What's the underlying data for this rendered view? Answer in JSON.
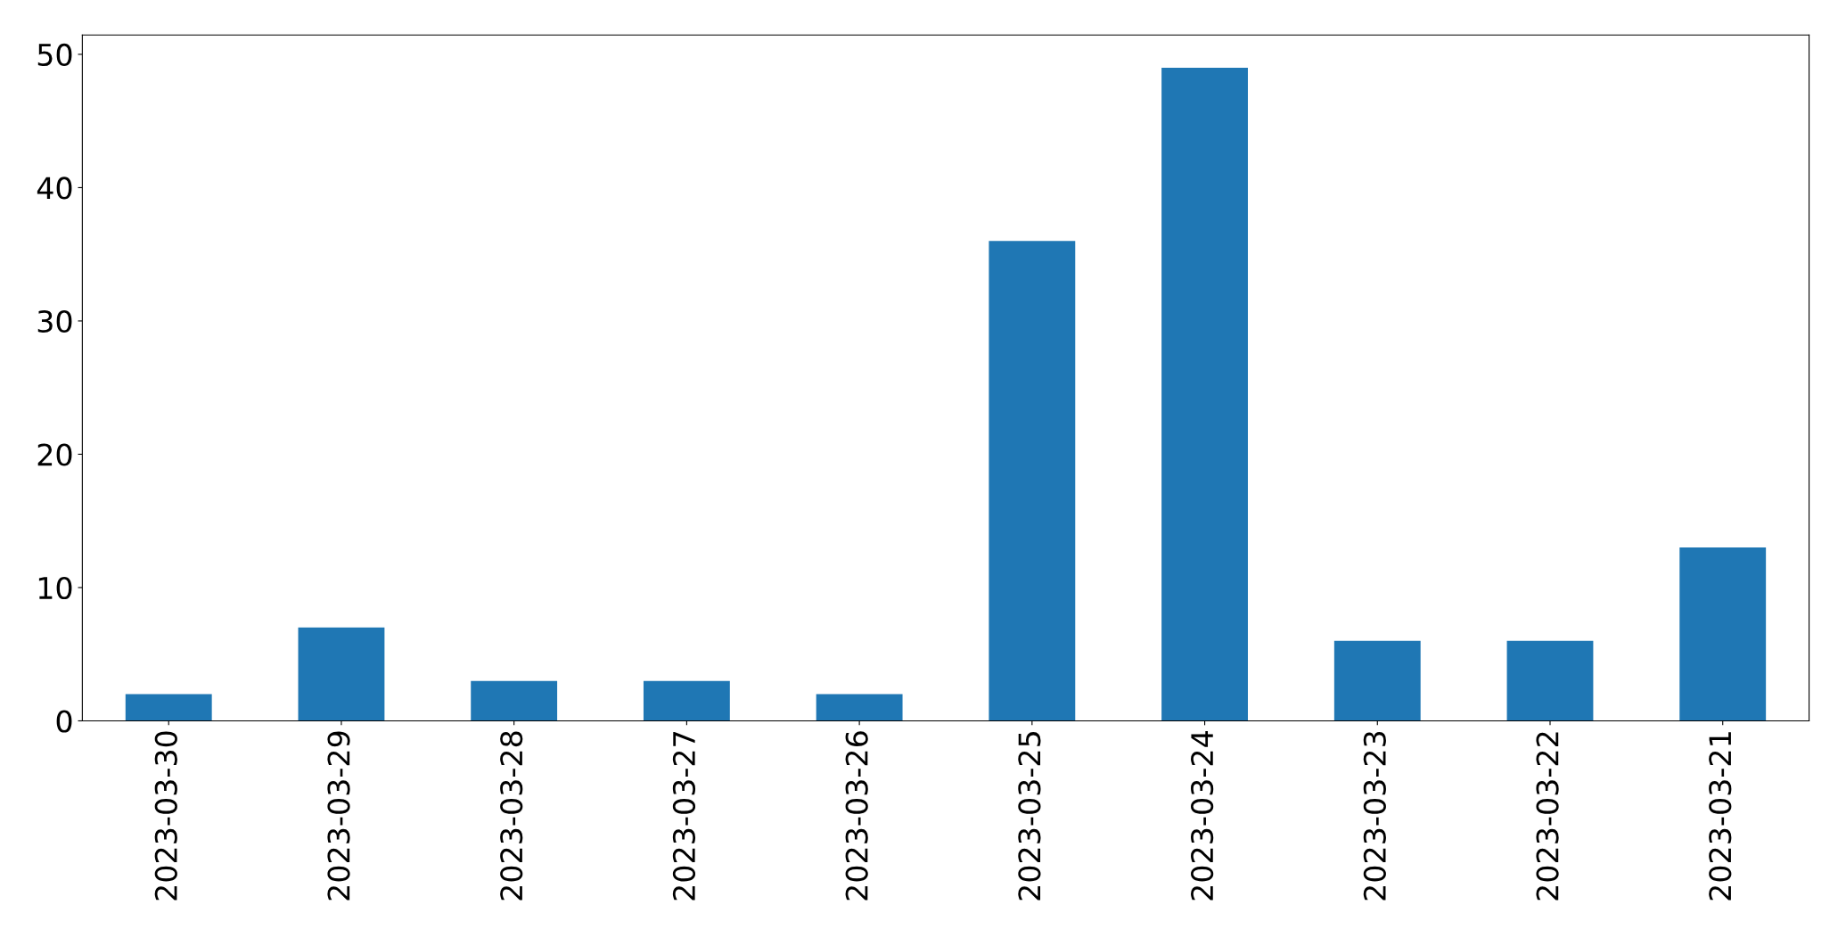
{
  "chart_data": {
    "type": "bar",
    "categories": [
      "2023-03-30",
      "2023-03-29",
      "2023-03-28",
      "2023-03-27",
      "2023-03-26",
      "2023-03-25",
      "2023-03-24",
      "2023-03-23",
      "2023-03-22",
      "2023-03-21"
    ],
    "values": [
      2,
      7,
      3,
      3,
      2,
      36,
      49,
      6,
      6,
      13
    ],
    "color": "#1f77b4",
    "ylim": [
      0,
      51.45
    ],
    "yticks": [
      0,
      10,
      20,
      30,
      40,
      50
    ],
    "grid": false,
    "legend": false
  }
}
